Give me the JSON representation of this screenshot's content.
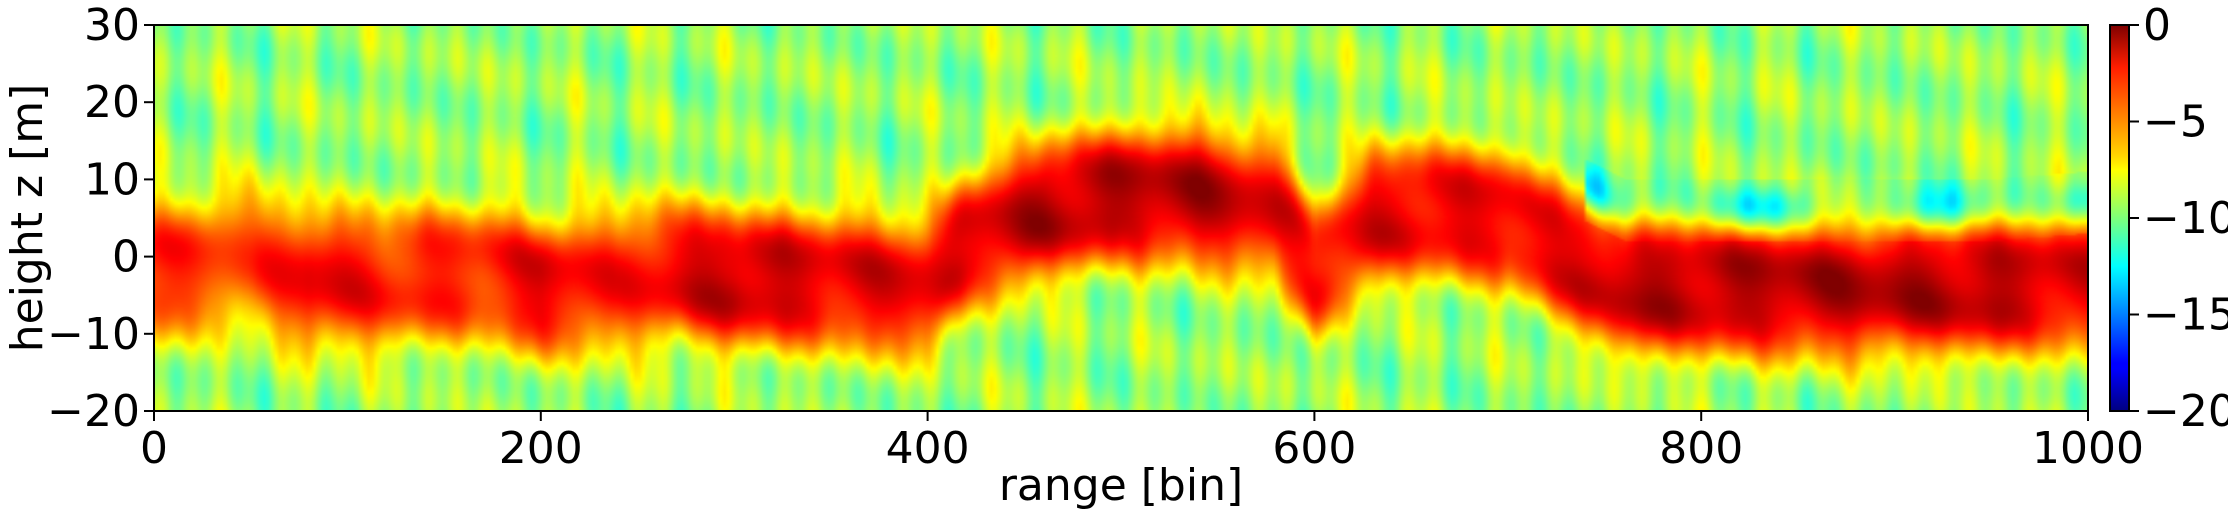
{
  "chart_data": {
    "type": "heatmap",
    "title": "",
    "xlabel": "range [bin]",
    "ylabel": "height z [m]",
    "xlim": [
      0,
      1000
    ],
    "ylim": [
      -20,
      30
    ],
    "x_ticks": [
      0,
      200,
      400,
      600,
      800,
      1000
    ],
    "y_ticks": [
      -20,
      -10,
      0,
      10,
      20,
      30
    ],
    "colormap": "jet",
    "colorbar": {
      "range": [
        -20,
        0
      ],
      "ticks": [
        0,
        -5,
        -10,
        -15,
        -20
      ],
      "tick_labels": [
        "0",
        "−5",
        "−10",
        "−15",
        "−20"
      ]
    },
    "y_tick_labels": [
      "−20",
      "−10",
      "0",
      "10",
      "20",
      "30"
    ],
    "x_tick_labels": [
      "0",
      "200",
      "400",
      "600",
      "800",
      "1000"
    ],
    "ridge_profile": {
      "x": [
        0,
        50,
        80,
        120,
        170,
        200,
        240,
        270,
        300,
        350,
        400,
        420,
        460,
        500,
        540,
        580,
        600,
        630,
        660,
        700,
        730,
        760,
        800,
        850,
        900,
        950,
        1000
      ],
      "center_z": [
        -2,
        0,
        -3,
        -3,
        -2,
        -4,
        -3,
        -2,
        -3,
        -3,
        -4,
        2,
        6,
        8,
        8,
        6,
        -2,
        5,
        6,
        5,
        0,
        -4,
        -4,
        -4,
        -4,
        -4,
        -3
      ],
      "peak_db": [
        -3,
        -4,
        -2,
        -3,
        -3,
        -2,
        -3,
        -2,
        -1,
        -2,
        -2,
        -2,
        -1,
        -1,
        -1,
        -2,
        -3,
        -2,
        -2,
        -2,
        -2,
        -1,
        -1,
        -1,
        -1,
        -1,
        -2
      ]
    },
    "background_db": -9.5
  }
}
